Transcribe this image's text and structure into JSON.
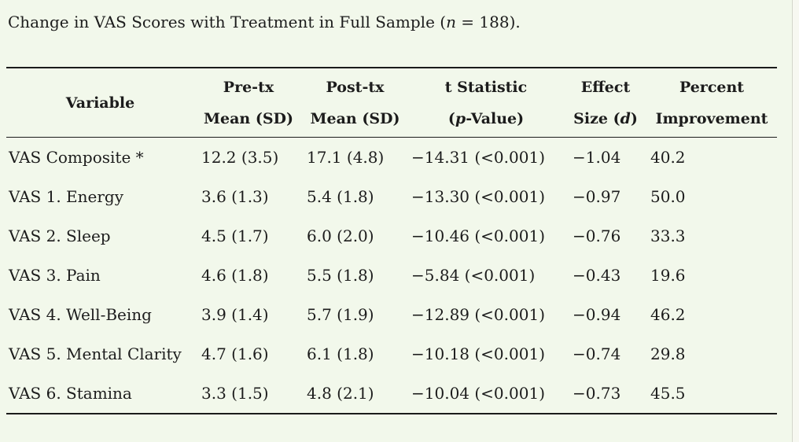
{
  "page": {
    "background_color": "#f2f8eb",
    "rule_color": "#1b1b1b",
    "text_color": "#1c1c1c",
    "title": {
      "text_before_n": "Change in VAS Scores with Treatment in Full Sample (",
      "n_symbol": "n",
      "text_after_n": " = 188)."
    }
  },
  "table": {
    "header": {
      "variable": "Variable",
      "pre_tx_line1": "Pre-tx",
      "pre_tx_line2": "Mean (SD)",
      "post_tx_line1": "Post-tx",
      "post_tx_line2": "Mean (SD)",
      "t_stat_line1": "t Statistic",
      "t_stat_line2_open": "(",
      "t_stat_line2_p": "p",
      "t_stat_line2_rest": "-Value)",
      "effect_line1": "Effect",
      "effect_line2_pre": "Size (",
      "effect_line2_d": "d",
      "effect_line2_post": ")",
      "percent_line1": "Percent",
      "percent_line2": "Improvement"
    },
    "rows": [
      {
        "variable": "VAS Composite *",
        "pre": "12.2 (3.5)",
        "post": "17.1 (4.8)",
        "t": "−14.31 (<0.001)",
        "d": "−1.04",
        "pct": "40.2"
      },
      {
        "variable": "VAS 1. Energy",
        "pre": "3.6 (1.3)",
        "post": "5.4 (1.8)",
        "t": "−13.30 (<0.001)",
        "d": "−0.97",
        "pct": "50.0"
      },
      {
        "variable": "VAS 2. Sleep",
        "pre": "4.5 (1.7)",
        "post": "6.0 (2.0)",
        "t": "−10.46 (<0.001)",
        "d": "−0.76",
        "pct": "33.3"
      },
      {
        "variable": "VAS 3. Pain",
        "pre": "4.6 (1.8)",
        "post": "5.5 (1.8)",
        "t": "−5.84 (<0.001)",
        "d": "−0.43",
        "pct": "19.6"
      },
      {
        "variable": "VAS 4. Well-Being",
        "pre": "3.9 (1.4)",
        "post": "5.7 (1.9)",
        "t": "−12.89 (<0.001)",
        "d": "−0.94",
        "pct": "46.2"
      },
      {
        "variable": "VAS 5. Mental Clarity",
        "pre": "4.7 (1.6)",
        "post": "6.1 (1.8)",
        "t": "−10.18 (<0.001)",
        "d": "−0.74",
        "pct": "29.8"
      },
      {
        "variable": "VAS 6. Stamina",
        "pre": "3.3 (1.5)",
        "post": "4.8 (2.1)",
        "t": "−10.04 (<0.001)",
        "d": "−0.73",
        "pct": "45.5"
      }
    ]
  }
}
